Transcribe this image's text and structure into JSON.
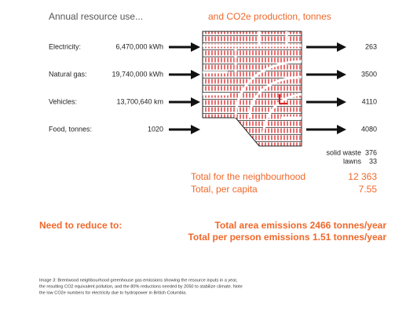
{
  "header": {
    "left": "Annual resource use...",
    "right": "and CO2e production, tonnes"
  },
  "rows": [
    {
      "label": "Electricity:",
      "amount": "6,470,000 kWh",
      "co2e": "263"
    },
    {
      "label": "Natural gas:",
      "amount": "19,740,000 kWh",
      "co2e": "3500"
    },
    {
      "label": "Vehicles:",
      "amount": "13,700,640 km",
      "co2e": "4110"
    },
    {
      "label": "Food, tonnes:",
      "amount": "1020",
      "co2e": "4080"
    }
  ],
  "extras": [
    {
      "label": "solid waste",
      "value": "376"
    },
    {
      "label": "lawns",
      "value": "33"
    }
  ],
  "totals": [
    {
      "label": "Total for the neighbourhood",
      "value": "12 363"
    },
    {
      "label": "Total, per capita",
      "value": "7.55"
    }
  ],
  "reduce": {
    "label": "Need to reduce to:",
    "lines": [
      "Total area emissions 2466 tonnes/year",
      "Total per person  emissions  1.51 tonnes/year"
    ]
  },
  "caption": [
    "Image 3: Brentwood neighbourhood greenhouse gas emissions showing the resource inputs in a year,",
    "the resulting CO2 equivalent pollution, and the 80% reductions needed by 2050 to stabilize climate.  Note",
    "the low CO2e numbers for electricity due to hydropower in British Columbia."
  ]
}
